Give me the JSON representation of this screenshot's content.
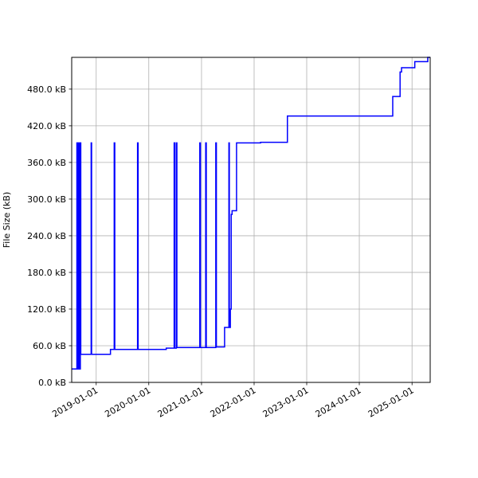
{
  "chart_data": {
    "type": "line",
    "title": "",
    "xlabel": "",
    "ylabel": "File Size (kB)",
    "x_type": "date",
    "xlim": [
      "2018-07-15",
      "2025-05-07"
    ],
    "ylim": [
      0,
      532
    ],
    "x_ticks": [
      "2019-01-01",
      "2020-01-01",
      "2021-01-01",
      "2022-01-01",
      "2023-01-01",
      "2024-01-01",
      "2025-01-01"
    ],
    "y_ticks": [
      0,
      60,
      120,
      180,
      240,
      300,
      360,
      420,
      480
    ],
    "y_tick_labels": [
      "0.0 kB",
      "60.0 kB",
      "120.0 kB",
      "180.0 kB",
      "240.0 kB",
      "300.0 kB",
      "360.0 kB",
      "420.0 kB",
      "480.0 kB"
    ],
    "grid": true,
    "legend": "none",
    "series": [
      {
        "color": "#0000ff",
        "step": true,
        "points": [
          [
            "2018-07-15",
            22
          ],
          [
            "2018-08-20",
            22
          ],
          [
            "2018-08-20",
            392
          ],
          [
            "2018-08-25",
            392
          ],
          [
            "2018-08-25",
            22
          ],
          [
            "2018-08-29",
            22
          ],
          [
            "2018-08-29",
            392
          ],
          [
            "2018-09-01",
            392
          ],
          [
            "2018-09-01",
            22
          ],
          [
            "2018-09-04",
            22
          ],
          [
            "2018-09-04",
            392
          ],
          [
            "2018-09-10",
            392
          ],
          [
            "2018-09-10",
            22
          ],
          [
            "2018-09-13",
            22
          ],
          [
            "2018-09-13",
            392
          ],
          [
            "2018-09-16",
            392
          ],
          [
            "2018-09-16",
            46
          ],
          [
            "2018-11-27",
            46
          ],
          [
            "2018-11-27",
            392
          ],
          [
            "2018-11-30",
            392
          ],
          [
            "2018-11-30",
            46
          ],
          [
            "2019-04-10",
            46
          ],
          [
            "2019-04-10",
            54
          ],
          [
            "2019-05-06",
            54
          ],
          [
            "2019-05-06",
            392
          ],
          [
            "2019-05-10",
            392
          ],
          [
            "2019-05-10",
            54
          ],
          [
            "2019-10-15",
            54
          ],
          [
            "2019-10-15",
            392
          ],
          [
            "2019-10-19",
            392
          ],
          [
            "2019-10-19",
            54
          ],
          [
            "2020-05-01",
            54
          ],
          [
            "2020-05-01",
            56
          ],
          [
            "2020-06-25",
            56
          ],
          [
            "2020-06-25",
            392
          ],
          [
            "2020-06-29",
            392
          ],
          [
            "2020-06-29",
            56
          ],
          [
            "2020-07-10",
            56
          ],
          [
            "2020-07-10",
            392
          ],
          [
            "2020-07-14",
            392
          ],
          [
            "2020-07-14",
            57
          ],
          [
            "2020-12-20",
            57
          ],
          [
            "2020-12-20",
            392
          ],
          [
            "2020-12-24",
            392
          ],
          [
            "2020-12-24",
            57
          ],
          [
            "2021-01-30",
            57
          ],
          [
            "2021-01-30",
            392
          ],
          [
            "2021-02-03",
            392
          ],
          [
            "2021-02-03",
            57
          ],
          [
            "2021-04-10",
            57
          ],
          [
            "2021-04-10",
            392
          ],
          [
            "2021-04-14",
            392
          ],
          [
            "2021-04-14",
            58
          ],
          [
            "2021-06-10",
            58
          ],
          [
            "2021-06-10",
            90
          ],
          [
            "2021-07-10",
            90
          ],
          [
            "2021-07-10",
            392
          ],
          [
            "2021-07-13",
            392
          ],
          [
            "2021-07-13",
            90
          ],
          [
            "2021-07-20",
            90
          ],
          [
            "2021-07-20",
            120
          ],
          [
            "2021-07-26",
            120
          ],
          [
            "2021-07-26",
            275
          ],
          [
            "2021-08-01",
            275
          ],
          [
            "2021-08-01",
            281
          ],
          [
            "2021-09-01",
            281
          ],
          [
            "2021-09-01",
            392
          ],
          [
            "2022-02-15",
            392
          ],
          [
            "2022-02-15",
            393
          ],
          [
            "2022-08-20",
            393
          ],
          [
            "2022-08-20",
            436
          ],
          [
            "2024-08-20",
            436
          ],
          [
            "2024-08-20",
            468
          ],
          [
            "2024-10-10",
            468
          ],
          [
            "2024-10-10",
            508
          ],
          [
            "2024-10-20",
            508
          ],
          [
            "2024-10-20",
            515
          ],
          [
            "2025-01-20",
            515
          ],
          [
            "2025-01-20",
            525
          ],
          [
            "2025-04-20",
            525
          ],
          [
            "2025-04-20",
            532
          ],
          [
            "2025-05-07",
            532
          ]
        ]
      }
    ]
  }
}
